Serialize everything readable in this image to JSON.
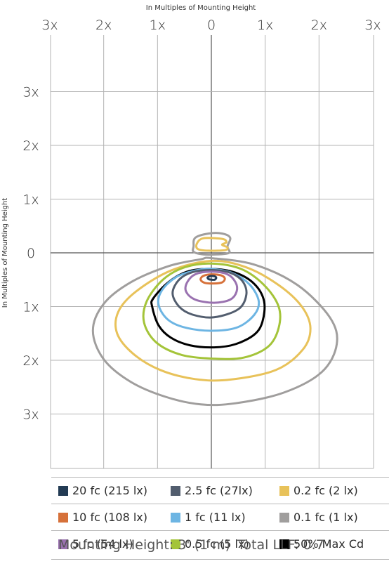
{
  "chart_data": {
    "type": "isofootcandle contour",
    "x_axis_title": "In  Multiples of Mounting Height",
    "y_axis_title": "In Multiples of Mounting Height",
    "x_ticks": [
      "3x",
      "2x",
      "1x",
      "0",
      "1x",
      "2x",
      "3x"
    ],
    "y_ticks": [
      "3x",
      "2x",
      "1x",
      "0",
      "1x",
      "2x",
      "3x"
    ],
    "x_range": [
      -3,
      3
    ],
    "y_range": [
      -3,
      4
    ],
    "grid": true,
    "contours": [
      {
        "name": "0.1 fc (1 lx)",
        "color": "#a09e9d",
        "width": 3,
        "points": [
          [
            0,
            0.1
          ],
          [
            0.8,
            0.22
          ],
          [
            1.6,
            0.6
          ],
          [
            2.2,
            1.2
          ],
          [
            2.33,
            1.7
          ],
          [
            2.05,
            2.22
          ],
          [
            1.35,
            2.6
          ],
          [
            0.45,
            2.8
          ],
          [
            -0.2,
            2.82
          ],
          [
            -0.85,
            2.68
          ],
          [
            -1.5,
            2.4
          ],
          [
            -2.0,
            1.98
          ],
          [
            -2.2,
            1.45
          ],
          [
            -2.0,
            0.95
          ],
          [
            -1.5,
            0.55
          ],
          [
            -0.8,
            0.25
          ],
          [
            -0.2,
            0.12
          ]
        ]
      },
      {
        "name": "0.1 fc (1 lx)",
        "color": "#a09e9d",
        "width": 3,
        "points": [
          [
            -0.05,
            -0.36
          ],
          [
            0.2,
            -0.36
          ],
          [
            0.35,
            -0.28
          ],
          [
            0.3,
            -0.12
          ],
          [
            0.33,
            0.0
          ],
          [
            0.1,
            0.03
          ],
          [
            -0.15,
            0.03
          ],
          [
            -0.33,
            -0.02
          ],
          [
            -0.33,
            -0.12
          ],
          [
            -0.3,
            -0.28
          ]
        ]
      },
      {
        "name": "0.2 fc (2 lx)",
        "color": "#e8c25a",
        "width": 3,
        "points": [
          [
            0,
            0.15
          ],
          [
            0.65,
            0.27
          ],
          [
            1.25,
            0.6
          ],
          [
            1.68,
            1.0
          ],
          [
            1.84,
            1.4
          ],
          [
            1.7,
            1.8
          ],
          [
            1.2,
            2.18
          ],
          [
            0.35,
            2.36
          ],
          [
            -0.3,
            2.35
          ],
          [
            -0.95,
            2.18
          ],
          [
            -1.45,
            1.88
          ],
          [
            -1.75,
            1.5
          ],
          [
            -1.73,
            1.1
          ],
          [
            -1.4,
            0.72
          ],
          [
            -0.75,
            0.33
          ]
        ]
      },
      {
        "name": "0.2 fc (2 lx)",
        "color": "#e8c25a",
        "width": 3,
        "points": [
          [
            -0.15,
            -0.27
          ],
          [
            0.2,
            -0.26
          ],
          [
            0.28,
            -0.2
          ],
          [
            0.2,
            -0.15
          ],
          [
            0.3,
            -0.1
          ],
          [
            0.25,
            -0.05
          ],
          [
            -0.05,
            -0.04
          ],
          [
            -0.25,
            -0.07
          ],
          [
            -0.27,
            -0.17
          ]
        ]
      },
      {
        "name": "0.5 fc (5 lx)",
        "color": "#a4c439",
        "width": 3,
        "points": [
          [
            0,
            0.2
          ],
          [
            0.55,
            0.3
          ],
          [
            0.98,
            0.6
          ],
          [
            1.25,
            1.0
          ],
          [
            1.25,
            1.4
          ],
          [
            1.05,
            1.75
          ],
          [
            0.6,
            1.95
          ],
          [
            0.05,
            1.97
          ],
          [
            -0.55,
            1.9
          ],
          [
            -1.02,
            1.67
          ],
          [
            -1.25,
            1.3
          ],
          [
            -1.2,
            0.9
          ],
          [
            -0.9,
            0.5
          ],
          [
            -0.5,
            0.27
          ]
        ]
      },
      {
        "name": "50% Max Cd",
        "color": "#000000",
        "width": 3,
        "points": [
          [
            0,
            0.3
          ],
          [
            0.45,
            0.37
          ],
          [
            0.8,
            0.58
          ],
          [
            0.98,
            0.9
          ],
          [
            0.95,
            1.28
          ],
          [
            0.8,
            1.52
          ],
          [
            0.45,
            1.7
          ],
          [
            0.05,
            1.76
          ],
          [
            -0.4,
            1.72
          ],
          [
            -0.75,
            1.58
          ],
          [
            -0.98,
            1.35
          ],
          [
            -1.1,
            1.0
          ],
          [
            -1.08,
            0.85
          ],
          [
            -0.8,
            0.55
          ],
          [
            -0.45,
            0.35
          ]
        ]
      },
      {
        "name": "1 fc (11 lx)",
        "color": "#6db5e3",
        "width": 3,
        "points": [
          [
            0,
            0.3
          ],
          [
            0.4,
            0.38
          ],
          [
            0.72,
            0.6
          ],
          [
            0.88,
            0.9
          ],
          [
            0.8,
            1.15
          ],
          [
            0.5,
            1.38
          ],
          [
            0.05,
            1.45
          ],
          [
            -0.45,
            1.4
          ],
          [
            -0.8,
            1.25
          ],
          [
            -0.98,
            0.97
          ],
          [
            -0.92,
            0.7
          ],
          [
            -0.65,
            0.45
          ],
          [
            -0.3,
            0.33
          ]
        ]
      },
      {
        "name": "2.5 fc (27lx)",
        "color": "#525d6e",
        "width": 3,
        "points": [
          [
            0,
            0.32
          ],
          [
            0.35,
            0.37
          ],
          [
            0.58,
            0.53
          ],
          [
            0.65,
            0.78
          ],
          [
            0.5,
            1.05
          ],
          [
            0.05,
            1.2
          ],
          [
            -0.35,
            1.15
          ],
          [
            -0.6,
            1.0
          ],
          [
            -0.72,
            0.75
          ],
          [
            -0.6,
            0.5
          ],
          [
            -0.35,
            0.36
          ]
        ]
      },
      {
        "name": "5 fc (54 lx)",
        "color": "#9a72b0",
        "width": 3,
        "points": [
          [
            0,
            0.35
          ],
          [
            0.3,
            0.4
          ],
          [
            0.45,
            0.55
          ],
          [
            0.47,
            0.72
          ],
          [
            0.35,
            0.87
          ],
          [
            0.05,
            0.93
          ],
          [
            -0.3,
            0.87
          ],
          [
            -0.47,
            0.72
          ],
          [
            -0.45,
            0.55
          ],
          [
            -0.3,
            0.4
          ]
        ]
      },
      {
        "name": "10 fc (108 lx)",
        "color": "#d6713a",
        "width": 3,
        "points": [
          [
            0,
            0.4
          ],
          [
            0.18,
            0.42
          ],
          [
            0.25,
            0.48
          ],
          [
            0.2,
            0.55
          ],
          [
            0.05,
            0.57
          ],
          [
            -0.12,
            0.56
          ],
          [
            -0.2,
            0.5
          ],
          [
            -0.15,
            0.43
          ]
        ]
      },
      {
        "name": "20 fc (215 lx)",
        "color": "#233b54",
        "width": 3,
        "points": [
          [
            0,
            0.43
          ],
          [
            0.07,
            0.44
          ],
          [
            0.09,
            0.47
          ],
          [
            0.06,
            0.5
          ],
          [
            0.01,
            0.5
          ],
          [
            -0.05,
            0.49
          ],
          [
            -0.07,
            0.46
          ],
          [
            -0.04,
            0.44
          ]
        ]
      }
    ],
    "legend": [
      [
        {
          "label": "20 fc (215 lx)",
          "color": "#233b54"
        },
        {
          "label": "2.5 fc (27lx)",
          "color": "#525d6e"
        },
        {
          "label": "0.2 fc (2 lx)",
          "color": "#e8c25a"
        }
      ],
      [
        {
          "label": "10 fc (108 lx)",
          "color": "#d6713a"
        },
        {
          "label": "1 fc (11 lx)",
          "color": "#6db5e3"
        },
        {
          "label": "0.1 fc (1 lx)",
          "color": "#a09e9d"
        }
      ],
      [
        {
          "label": "5 fc (54 lx)",
          "color": "#9a72b0"
        },
        {
          "label": "0.5 fc (5 lx)",
          "color": "#a4c439"
        },
        {
          "label": "50% Max Cd",
          "color": "#000000"
        }
      ]
    ]
  },
  "footer": {
    "mounting_height": "Mounting Height: 3' (1 m)",
    "total_llf": "Total LLF: 0.7"
  }
}
